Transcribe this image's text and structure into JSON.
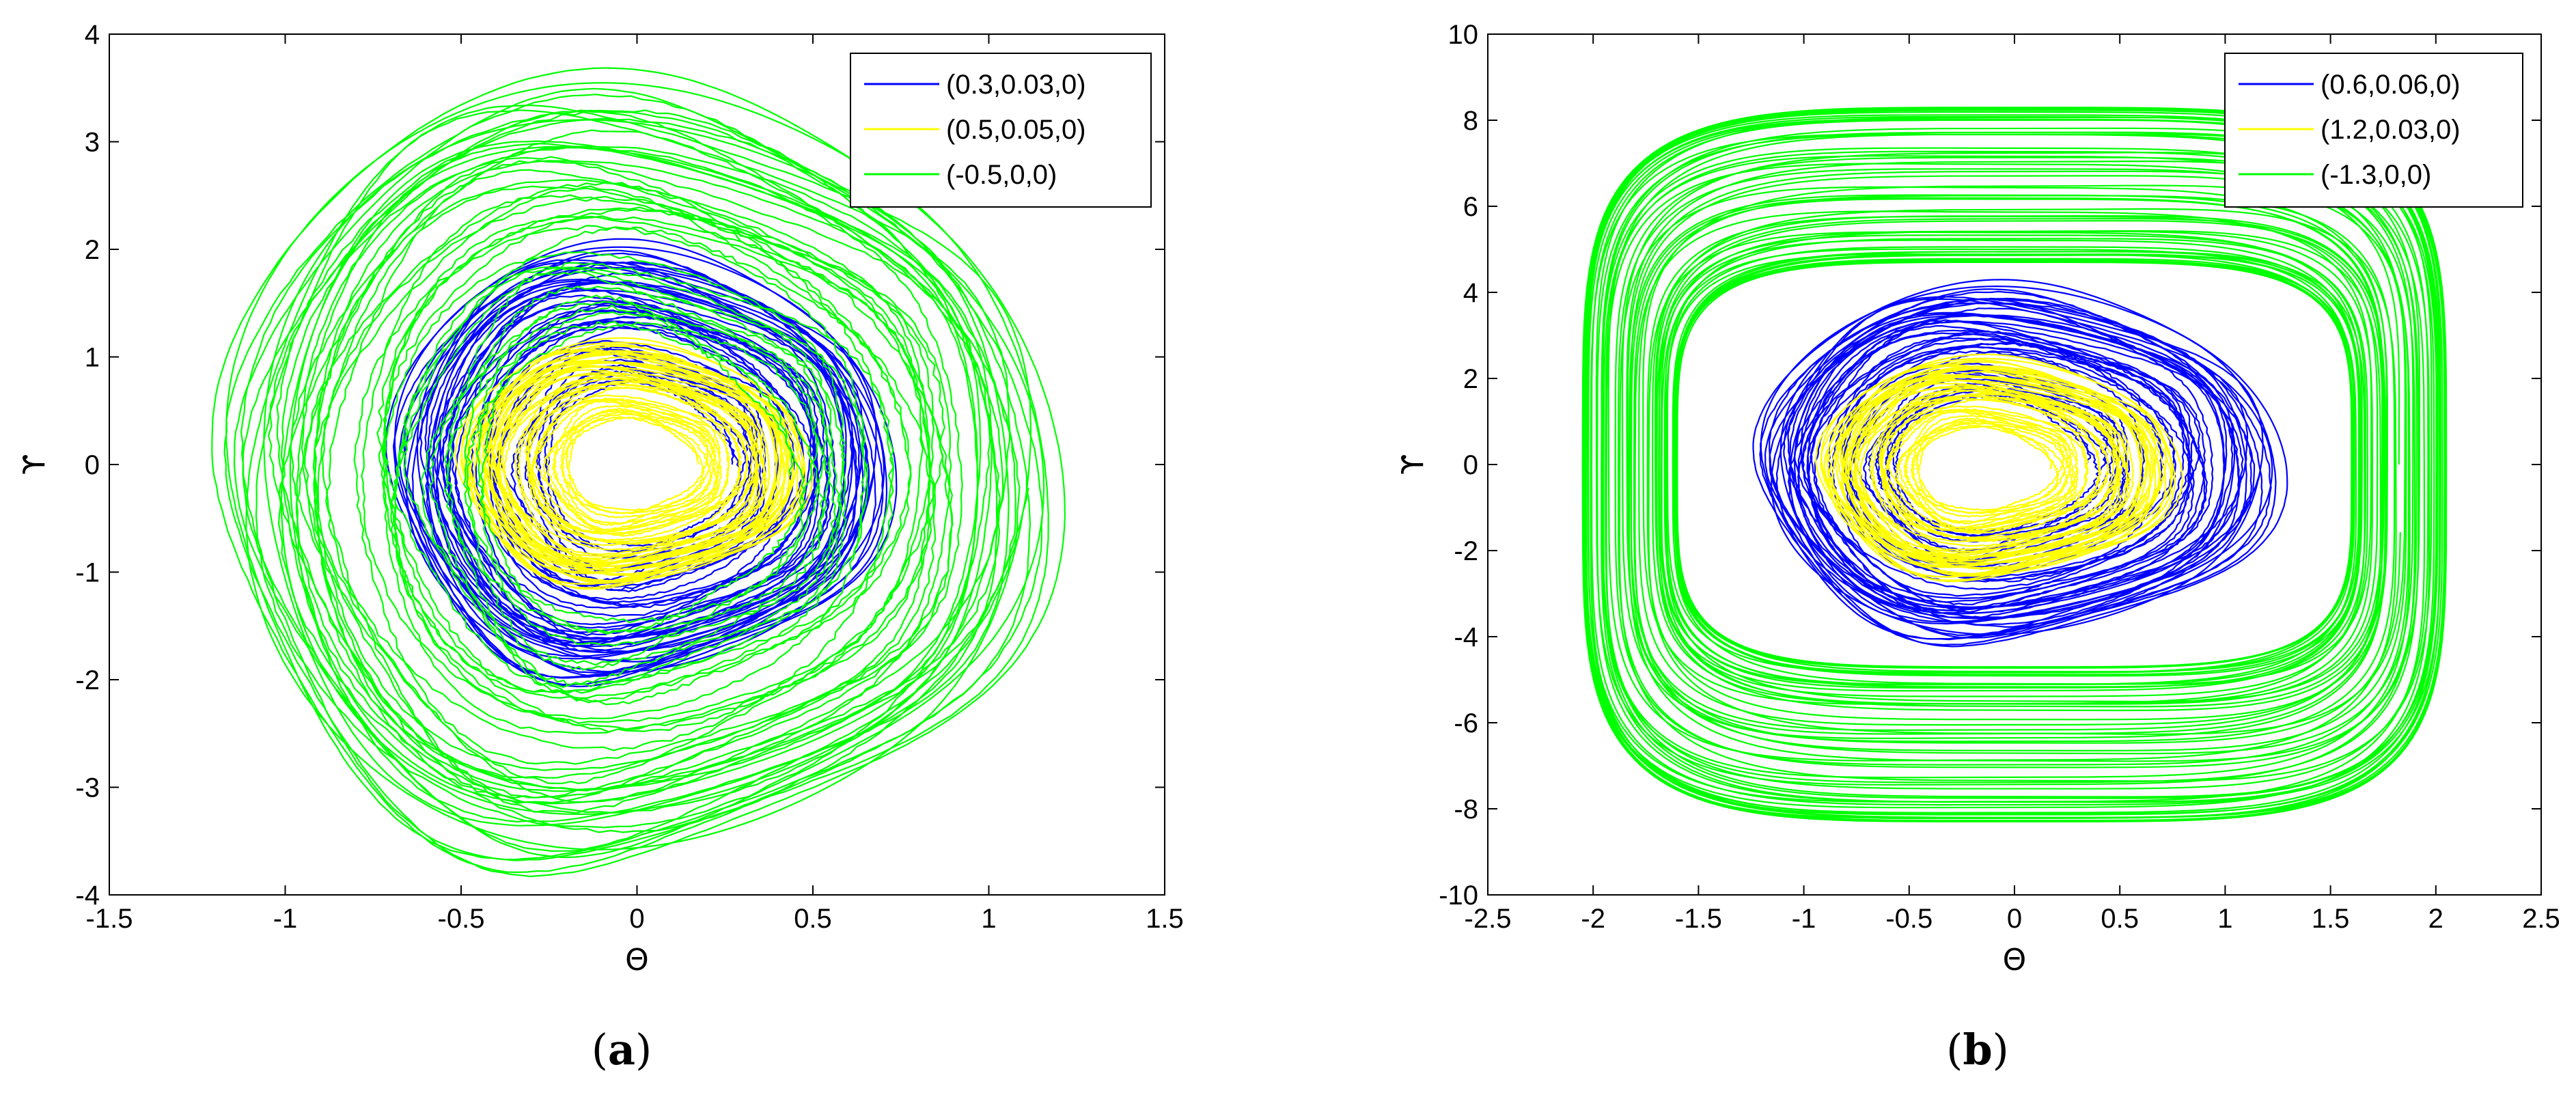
{
  "chart_data": [
    {
      "panel": "(a)",
      "type": "line",
      "plot_kind": "phase-portrait",
      "xlabel": "Θ",
      "ylabel": "ϒ",
      "xlim": [
        -1.5,
        1.5
      ],
      "ylim": [
        -4,
        4
      ],
      "xticks": [
        -1.5,
        -1,
        -0.5,
        0,
        0.5,
        1,
        1.5
      ],
      "yticks": [
        -4,
        -3,
        -2,
        -1,
        0,
        1,
        2,
        3,
        4
      ],
      "grid": false,
      "legend_position": "top-right",
      "series": [
        {
          "name": "(0.3,0.03,0)",
          "color": "#0000ff",
          "x_range": [
            -0.72,
            0.74
          ],
          "y_range": [
            -2.05,
            2.05
          ],
          "center": [
            0.0,
            0.0
          ]
        },
        {
          "name": "(0.5,0.05,0)",
          "color": "#ffff00",
          "x_range": [
            -0.52,
            0.5
          ],
          "y_range": [
            -1.15,
            1.15
          ],
          "center": [
            0.0,
            0.0
          ]
        },
        {
          "name": "(-0.5,0,0)",
          "color": "#00ff00",
          "x_range": [
            -1.22,
            1.22
          ],
          "y_range": [
            -3.8,
            3.6
          ],
          "center": [
            0.0,
            0.0
          ]
        }
      ]
    },
    {
      "panel": "(b)",
      "type": "line",
      "plot_kind": "phase-portrait",
      "xlabel": "Θ",
      "ylabel": "ϒ",
      "xlim": [
        -2.5,
        2.5
      ],
      "ylim": [
        -10,
        10
      ],
      "xticks": [
        -2.5,
        -2,
        -1.5,
        -1,
        -0.5,
        0,
        0.5,
        1,
        1.5,
        2,
        2.5
      ],
      "yticks": [
        -10,
        -8,
        -6,
        -4,
        -2,
        0,
        2,
        4,
        6,
        8,
        10
      ],
      "grid": false,
      "legend_position": "top-right",
      "series": [
        {
          "name": "(0.6,0.06,0)",
          "color": "#0000ff",
          "x_range": [
            -1.25,
            1.3
          ],
          "y_range": [
            -4.2,
            4.2
          ],
          "center": [
            -0.2,
            0.0
          ]
        },
        {
          "name": "(1.2,0.03,0)",
          "color": "#ffff00",
          "x_range": [
            -0.95,
            0.8
          ],
          "y_range": [
            -2.7,
            2.5
          ],
          "center": [
            -0.1,
            0.0
          ]
        },
        {
          "name": "(-1.3,0,0)",
          "color": "#00ff00",
          "x_range": [
            -2.05,
            2.05
          ],
          "y_range": [
            -8.3,
            8.3
          ],
          "inner_x_range": [
            -1.6,
            1.6
          ],
          "inner_y_range": [
            -4.7,
            4.7
          ]
        }
      ]
    }
  ],
  "captions": {
    "a": "a",
    "b": "b"
  }
}
